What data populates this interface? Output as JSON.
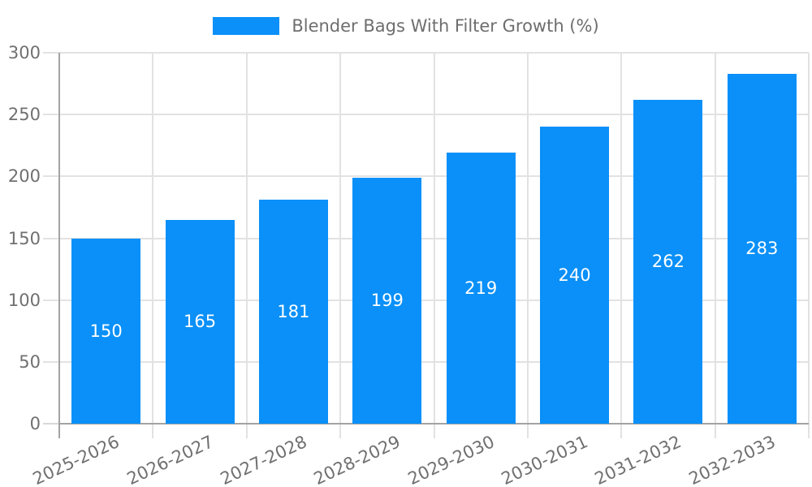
{
  "chart_data": {
    "type": "bar",
    "title": "Blender Bags With Filter Growth (%)",
    "legend": {
      "position": "top-center",
      "entries": [
        {
          "label": "Blender Bags With Filter Growth (%)",
          "color": "#0a90f8"
        }
      ]
    },
    "categories": [
      "2025-2026",
      "2026-2027",
      "2027-2028",
      "2028-2029",
      "2029-2030",
      "2030-2031",
      "2031-2032",
      "2032-2033"
    ],
    "values": [
      150,
      165,
      181,
      199,
      219,
      240,
      262,
      283
    ],
    "xlabel": "",
    "ylabel": "",
    "ylim": [
      0,
      300
    ],
    "yticks": [
      0,
      50,
      100,
      150,
      200,
      250,
      300
    ],
    "grid": "both",
    "x_tick_rotation_deg": -25,
    "bar_labels_inside": true,
    "colors": {
      "bar": "#0a90f8",
      "bar_label": "#ffffff",
      "grid": "#e2e2e2",
      "tick": "#d8d8d8",
      "axis": "#a3a3a3",
      "tick_label": "#707070",
      "legend_text": "#6e6e6e",
      "background": "#ffffff"
    }
  }
}
